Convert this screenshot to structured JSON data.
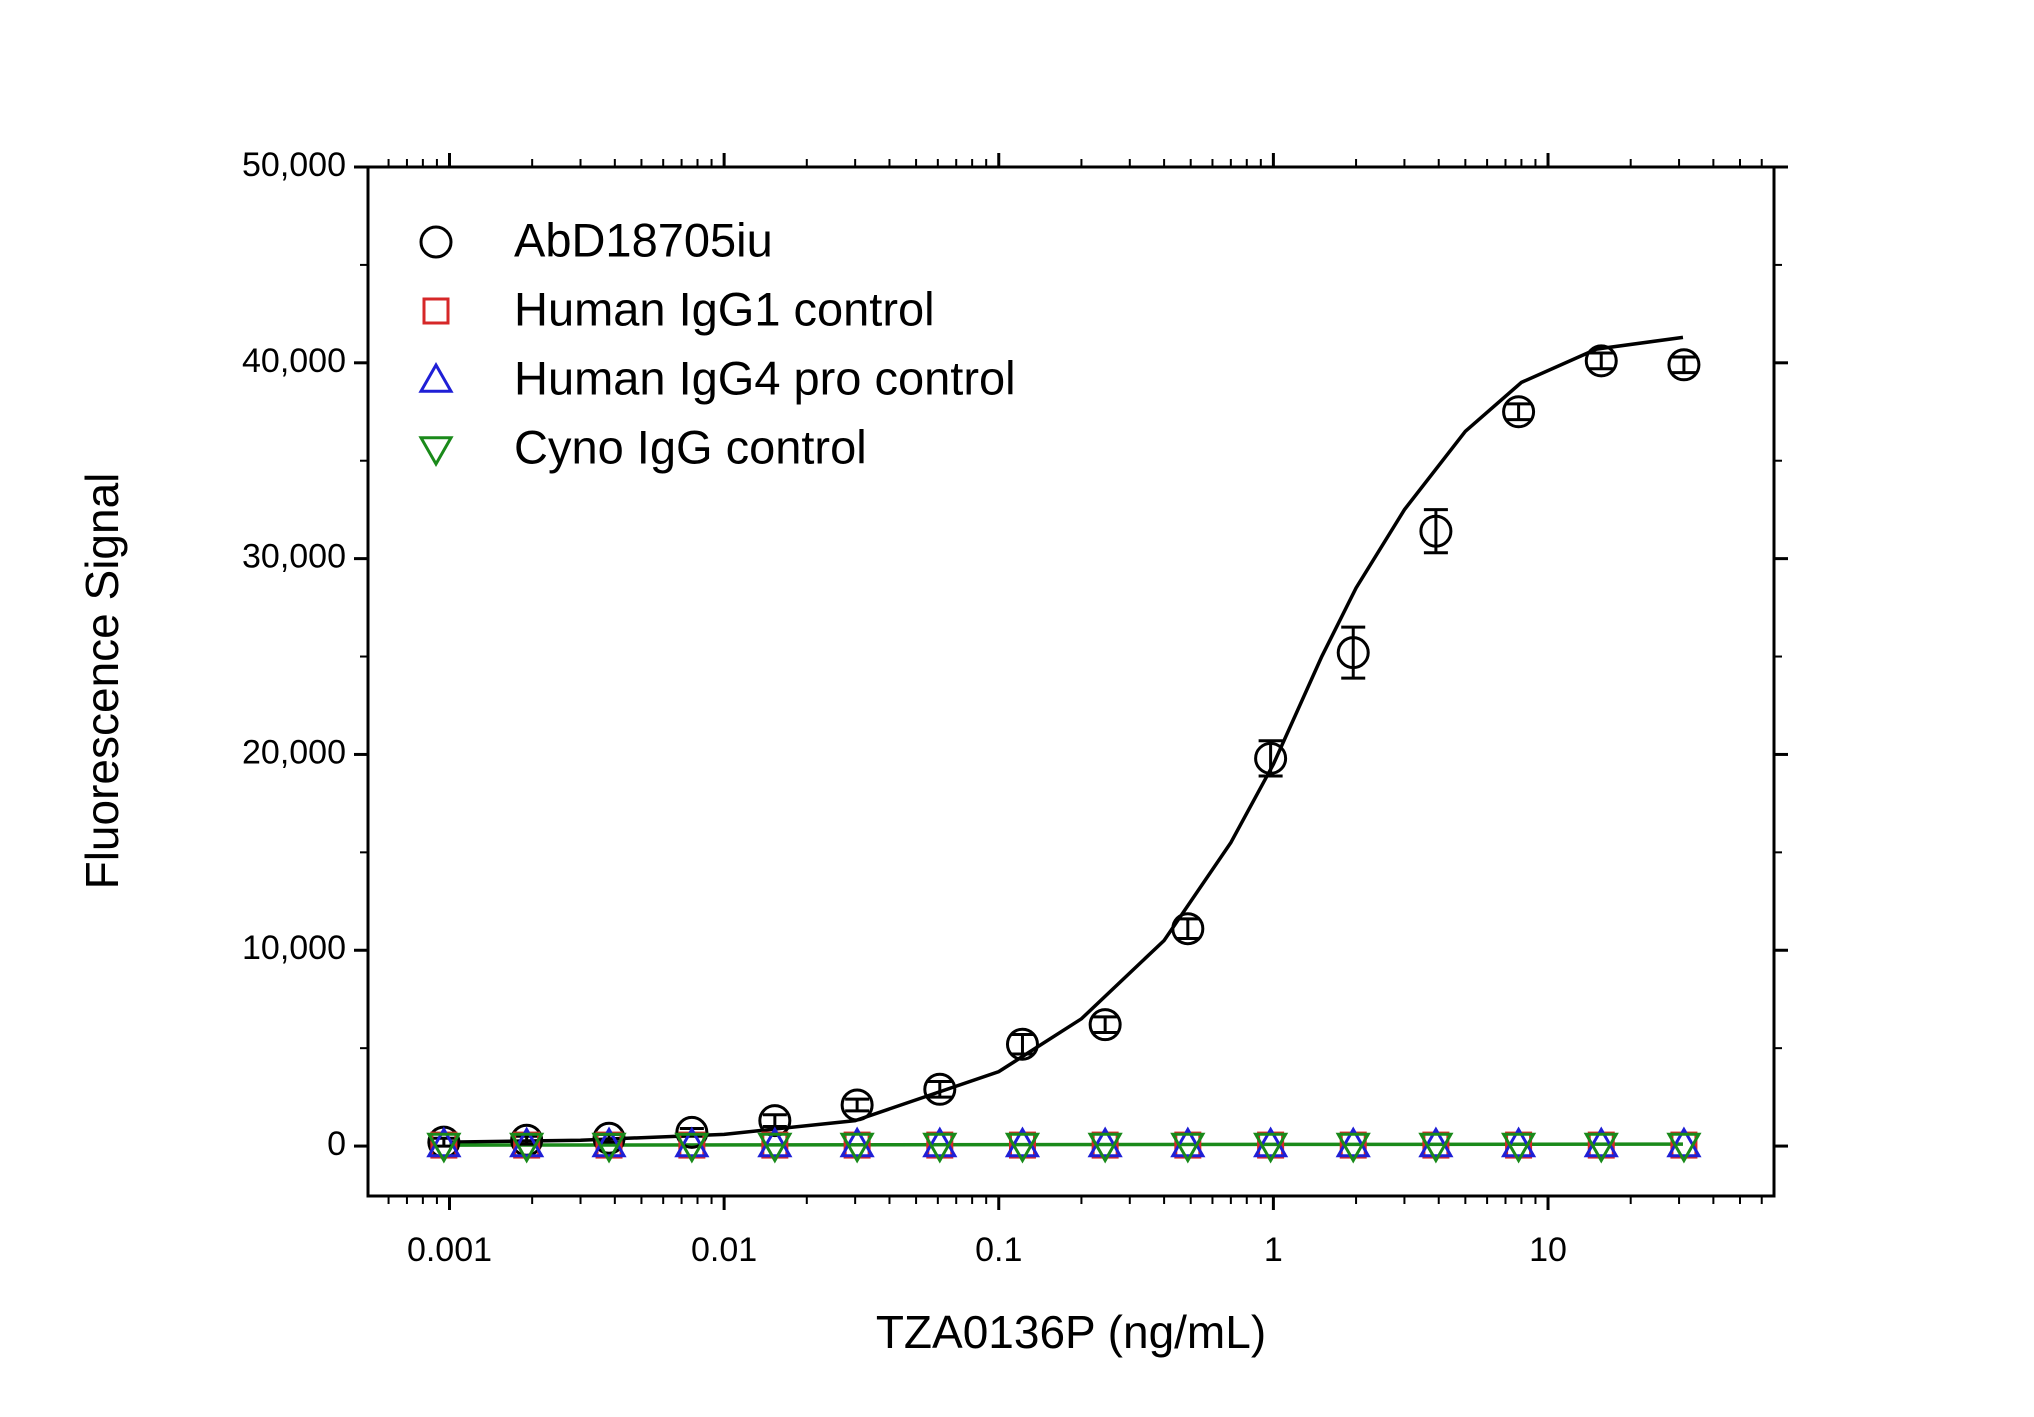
{
  "chart_data": {
    "type": "scatter",
    "xlabel": "TZA0136P (ng/mL)",
    "ylabel": "Fluorescence Signal",
    "xscale": "log",
    "xlim": [
      0.000505,
      66.5
    ],
    "ylim": [
      -2550,
      50000
    ],
    "xticks": [
      0.001,
      0.01,
      0.1,
      1,
      10
    ],
    "yticks": [
      0,
      {
        "value": 10000,
        "label": "10,000"
      },
      {
        "value": 20000,
        "label": "20,000"
      },
      {
        "value": 30000,
        "label": "30,000"
      },
      {
        "value": 40000,
        "label": "40,000"
      },
      {
        "value": 50000,
        "label": "50,000"
      }
    ],
    "legend": "top-left",
    "x": [
      0.000954,
      0.00191,
      0.00381,
      0.00763,
      0.0153,
      0.0305,
      0.061,
      0.122,
      0.244,
      0.488,
      0.977,
      1.953,
      3.906,
      7.813,
      15.625,
      31.25
    ],
    "series": [
      {
        "name": "AbD18705iu",
        "color": "#000000",
        "marker": "circle",
        "values": [
          200,
          300,
          400,
          700,
          1300,
          2100,
          2900,
          5200,
          6200,
          11100,
          19800,
          25200,
          31400,
          37500,
          40100,
          39900
        ],
        "errors": [
          200,
          200,
          200,
          200,
          300,
          300,
          400,
          500,
          400,
          500,
          900,
          1300,
          1100,
          400,
          400,
          400
        ]
      },
      {
        "name": "Human IgG1 control",
        "color": "#d62728",
        "marker": "square",
        "values": [
          50,
          50,
          50,
          50,
          50,
          50,
          50,
          50,
          50,
          50,
          50,
          50,
          50,
          50,
          50,
          50
        ]
      },
      {
        "name": "Human IgG4 pro control",
        "color": "#1f1fd6",
        "marker": "triangle-up",
        "values": [
          80,
          80,
          80,
          80,
          80,
          80,
          80,
          80,
          80,
          80,
          80,
          80,
          80,
          80,
          80,
          80
        ]
      },
      {
        "name": "Cyno IgG control",
        "color": "#1a8a1a",
        "marker": "triangle-down",
        "values": [
          30,
          30,
          30,
          30,
          30,
          30,
          30,
          30,
          30,
          30,
          30,
          30,
          30,
          30,
          30,
          30
        ]
      }
    ],
    "curves": [
      {
        "color": "#000000",
        "x": [
          0.001,
          0.003,
          0.01,
          0.03,
          0.1,
          0.2,
          0.4,
          0.7,
          1,
          1.5,
          2,
          3,
          5,
          8,
          15,
          31
        ],
        "values": [
          200,
          300,
          600,
          1300,
          3800,
          6500,
          10500,
          15500,
          19500,
          25000,
          28500,
          32500,
          36500,
          39000,
          40700,
          41300
        ]
      },
      {
        "color": "#1a8a1a",
        "x": [
          0.001,
          31
        ],
        "values": [
          50,
          100
        ]
      }
    ]
  }
}
